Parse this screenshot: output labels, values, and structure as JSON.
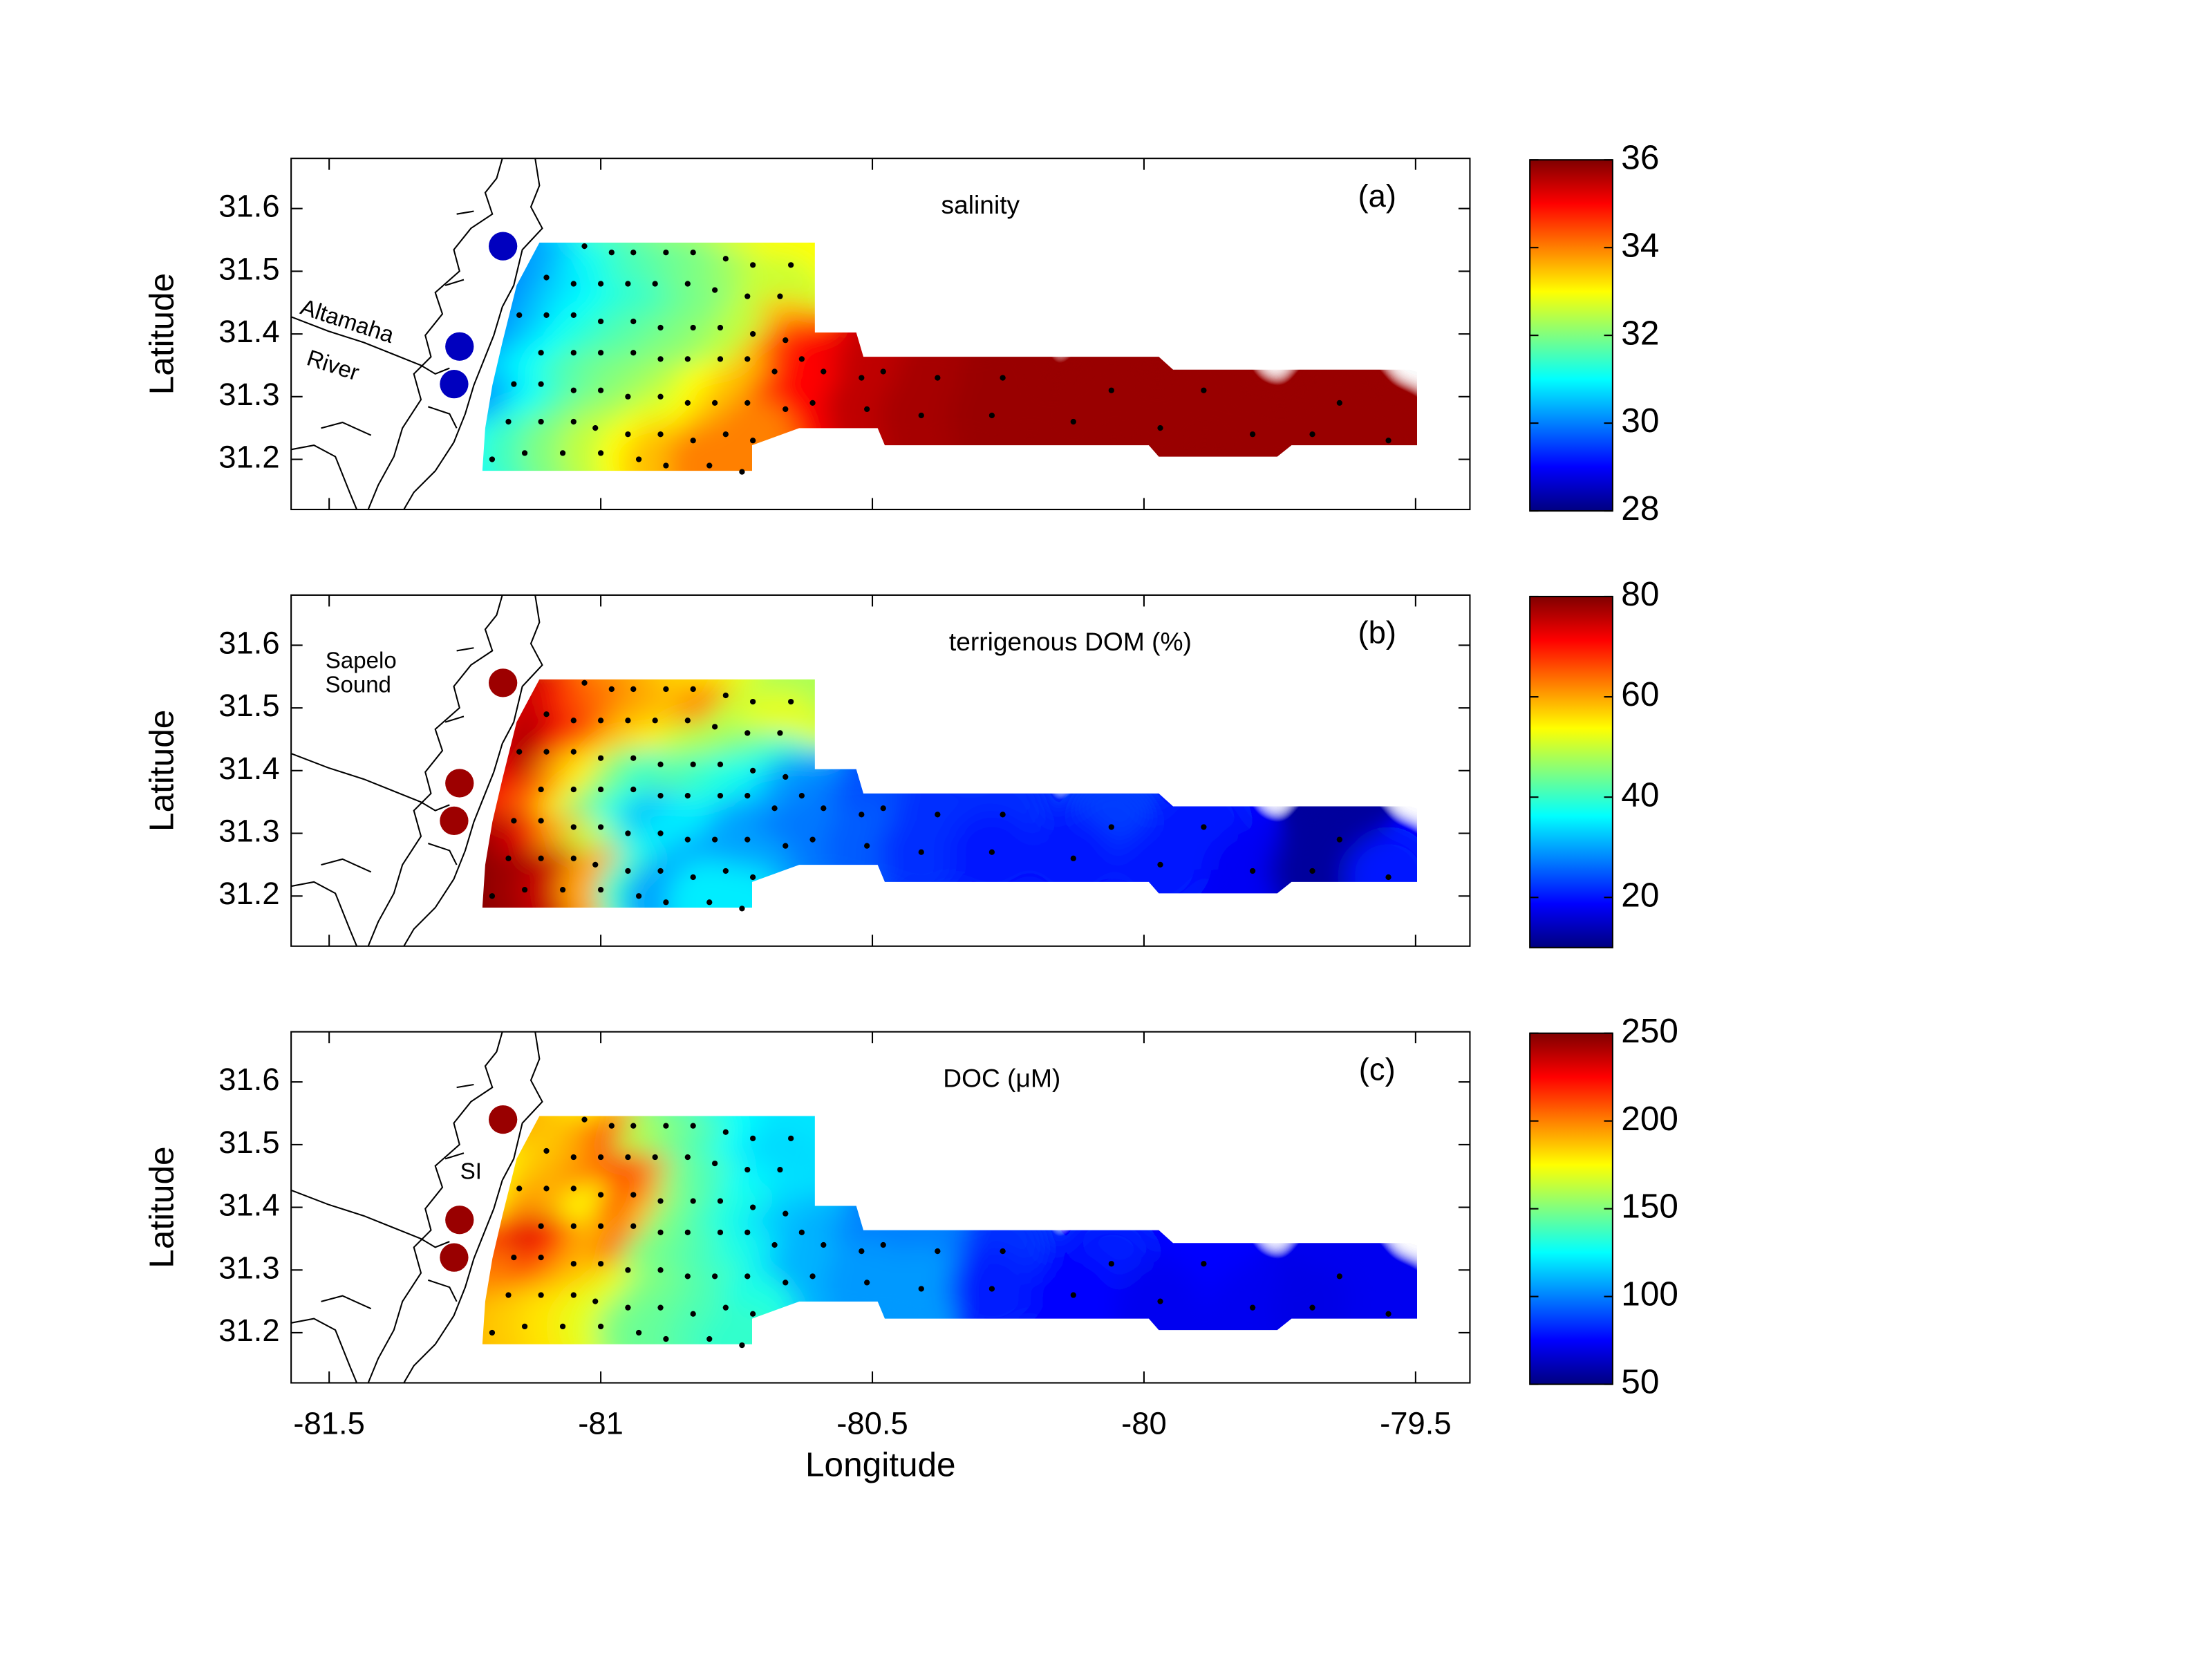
{
  "xlabel": "Longitude",
  "ylabel": "Latitude",
  "xlim": [
    -81.57,
    -79.4
  ],
  "ylim": [
    31.12,
    31.68
  ],
  "xticks": [
    -81.5,
    -81,
    -80.5,
    -80,
    -79.5
  ],
  "yticks": [
    31.2,
    31.3,
    31.4,
    31.5,
    31.6
  ],
  "stations": {
    "x": [
      -81.03,
      -80.98,
      -80.94,
      -80.88,
      -80.83,
      -80.77,
      -80.72,
      -80.65,
      -81.1,
      -81.05,
      -81.0,
      -80.95,
      -80.9,
      -80.84,
      -80.79,
      -80.73,
      -80.67,
      -81.15,
      -81.1,
      -81.05,
      -81.0,
      -80.94,
      -80.89,
      -80.83,
      -80.78,
      -80.72,
      -80.66,
      -81.11,
      -81.05,
      -81.0,
      -80.94,
      -80.89,
      -80.84,
      -80.78,
      -80.73,
      -80.68,
      -80.63,
      -80.59,
      -80.52,
      -80.48,
      -80.38,
      -80.26,
      -80.06,
      -79.89,
      -79.64,
      -81.16,
      -81.11,
      -81.05,
      -81.0,
      -80.95,
      -80.89,
      -80.84,
      -80.79,
      -80.73,
      -80.66,
      -80.61,
      -80.51,
      -80.41,
      -80.28,
      -80.13,
      -79.97,
      -81.17,
      -81.11,
      -81.05,
      -81.01,
      -80.95,
      -80.89,
      -80.83,
      -80.77,
      -80.72,
      -79.8,
      -79.69,
      -79.55,
      -81.2,
      -81.14,
      -81.07,
      -81.0,
      -80.93,
      -80.88,
      -80.8,
      -80.74
    ],
    "y": [
      31.54,
      31.53,
      31.53,
      31.53,
      31.53,
      31.52,
      31.51,
      31.51,
      31.49,
      31.48,
      31.48,
      31.48,
      31.48,
      31.48,
      31.47,
      31.46,
      31.46,
      31.43,
      31.43,
      31.43,
      31.42,
      31.42,
      31.41,
      31.41,
      31.41,
      31.4,
      31.39,
      31.37,
      31.37,
      31.37,
      31.37,
      31.36,
      31.36,
      31.36,
      31.36,
      31.34,
      31.36,
      31.34,
      31.33,
      31.34,
      31.33,
      31.33,
      31.31,
      31.31,
      31.29,
      31.32,
      31.32,
      31.31,
      31.31,
      31.3,
      31.3,
      31.29,
      31.29,
      31.29,
      31.28,
      31.29,
      31.28,
      31.27,
      31.27,
      31.26,
      31.25,
      31.26,
      31.26,
      31.26,
      31.25,
      31.24,
      31.24,
      31.23,
      31.24,
      31.23,
      31.24,
      31.24,
      31.23,
      31.2,
      31.21,
      31.21,
      31.21,
      31.2,
      31.19,
      31.19,
      31.18
    ]
  },
  "river_sites": {
    "x": [
      -81.18,
      -81.26,
      -81.27
    ],
    "y": [
      31.54,
      31.38,
      31.32
    ]
  },
  "chart_data": [
    {
      "type": "map",
      "title": "salinity",
      "panel_label": "(a)",
      "colormap": "jet",
      "clim": [
        28,
        36
      ],
      "cticks": [
        28,
        30,
        32,
        34,
        36
      ],
      "annotations": [
        "Altamaha",
        "River"
      ],
      "river_values": [
        28.5,
        28.5,
        28.5
      ],
      "values": [
        31.0,
        31.5,
        31.8,
        32.0,
        32.3,
        32.5,
        32.8,
        33.0,
        30.2,
        30.5,
        31.0,
        31.3,
        31.6,
        31.8,
        32.0,
        32.3,
        32.6,
        30.0,
        30.3,
        30.7,
        31.0,
        31.3,
        31.5,
        31.8,
        32.0,
        32.5,
        33.5,
        30.5,
        31.0,
        31.3,
        31.6,
        31.8,
        32.0,
        32.2,
        32.5,
        33.5,
        34.5,
        35.0,
        35.3,
        35.5,
        35.7,
        35.8,
        35.8,
        35.8,
        35.8,
        30.5,
        31.0,
        31.5,
        31.8,
        32.0,
        32.2,
        32.5,
        33.0,
        33.5,
        34.5,
        35.0,
        35.5,
        35.7,
        35.8,
        35.8,
        35.8,
        30.2,
        31.0,
        31.5,
        32.0,
        32.3,
        32.7,
        33.0,
        33.5,
        34.0,
        35.8,
        35.8,
        35.8,
        31.0,
        31.5,
        32.0,
        32.5,
        33.0,
        33.5,
        34.0,
        34.0
      ]
    },
    {
      "type": "map",
      "title": "terrigenous DOM (%)",
      "panel_label": "(b)",
      "colormap": "jet",
      "clim": [
        10,
        80
      ],
      "cticks": [
        20,
        40,
        60,
        80
      ],
      "annotations": [
        "Sapelo",
        "Sound"
      ],
      "river_values": [
        78,
        78,
        78
      ],
      "values": [
        65,
        62,
        60,
        58,
        56,
        55,
        52,
        48,
        75,
        70,
        65,
        63,
        60,
        58,
        62,
        50,
        52,
        72,
        78,
        72,
        65,
        58,
        55,
        50,
        48,
        45,
        40,
        75,
        60,
        55,
        45,
        40,
        42,
        40,
        38,
        35,
        30,
        28,
        25,
        24,
        22,
        22,
        23,
        20,
        12,
        72,
        65,
        55,
        45,
        38,
        32,
        35,
        35,
        30,
        28,
        27,
        25,
        22,
        20,
        20,
        20,
        78,
        72,
        60,
        50,
        40,
        35,
        32,
        30,
        30,
        18,
        12,
        20,
        80,
        78,
        75,
        60,
        40,
        30,
        35,
        35
      ]
    },
    {
      "type": "map",
      "title": "DOC (μM)",
      "panel_label": "(c)",
      "colormap": "jet",
      "clim": [
        50,
        250
      ],
      "cticks": [
        50,
        100,
        150,
        200,
        250
      ],
      "annotations": [
        "SI"
      ],
      "river_values": [
        245,
        245,
        245
      ],
      "values": [
        180,
        175,
        185,
        150,
        140,
        130,
        125,
        120,
        190,
        185,
        195,
        210,
        160,
        150,
        140,
        125,
        118,
        175,
        185,
        190,
        200,
        215,
        200,
        150,
        140,
        125,
        120,
        195,
        190,
        175,
        210,
        190,
        150,
        140,
        130,
        120,
        115,
        110,
        105,
        100,
        100,
        85,
        80,
        75,
        72,
        210,
        230,
        215,
        190,
        205,
        150,
        145,
        140,
        130,
        120,
        110,
        105,
        105,
        80,
        75,
        72,
        200,
        210,
        195,
        185,
        170,
        150,
        145,
        140,
        130,
        72,
        70,
        72,
        190,
        185,
        180,
        170,
        150,
        145,
        140,
        135
      ]
    }
  ]
}
